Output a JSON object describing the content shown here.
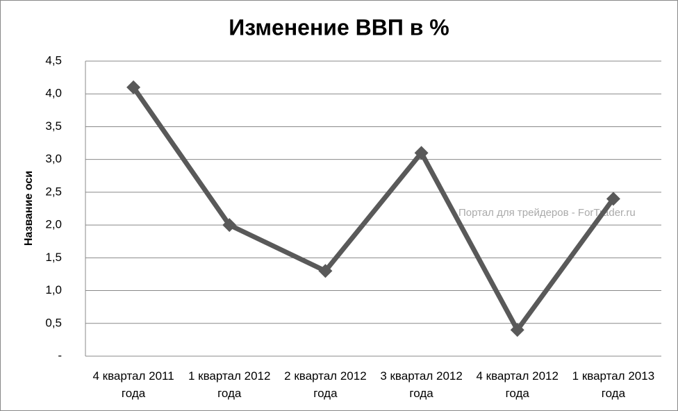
{
  "chart_data": {
    "type": "line",
    "title": "Изменение ВВП в %",
    "y_label": "Название оси",
    "annotation": "Портал для трейдеров - ForTrader.ru",
    "categories": [
      "4 квартал 2011 года",
      "1 квартал 2012 года",
      "2 квартал 2012 года",
      "3 квартал 2012 года",
      "4 квартал 2012 года",
      "1 квартал 2013 года"
    ],
    "series": [
      {
        "name": "ВВП",
        "color": "#595959",
        "values": [
          4.1,
          2.0,
          1.3,
          3.1,
          0.4,
          2.4
        ]
      }
    ],
    "ylim": [
      0,
      4.5
    ],
    "yticks": [
      {
        "value": 0,
        "label": "-"
      },
      {
        "value": 0.5,
        "label": "0,5"
      },
      {
        "value": 1,
        "label": "1,0"
      },
      {
        "value": 1.5,
        "label": "1,5"
      },
      {
        "value": 2,
        "label": "2,0"
      },
      {
        "value": 2.5,
        "label": "2,5"
      },
      {
        "value": 3,
        "label": "3,0"
      },
      {
        "value": 3.5,
        "label": "3,5"
      },
      {
        "value": 4,
        "label": "4,0"
      },
      {
        "value": 4.5,
        "label": "4,5"
      }
    ],
    "grid": true
  }
}
